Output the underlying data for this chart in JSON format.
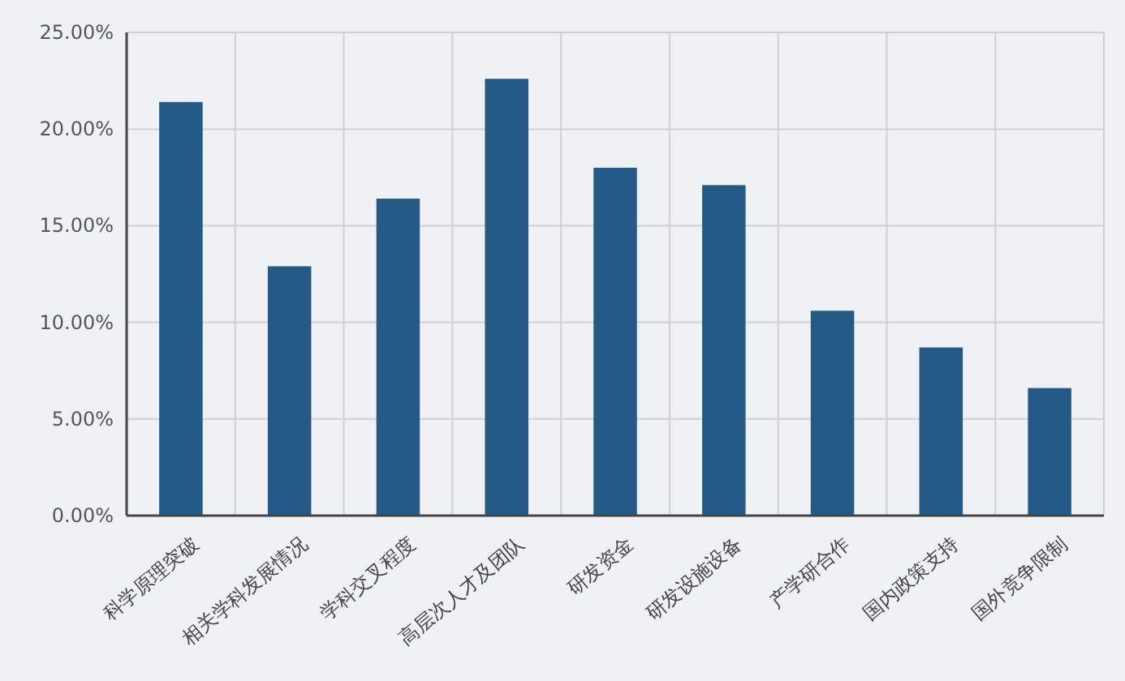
{
  "chart_data": {
    "type": "bar",
    "categories": [
      "科学原理突破",
      "相关学科发展情况",
      "学科交叉程度",
      "高层次人才及团队",
      "研发资金",
      "研发设施设备",
      "产学研合作",
      "国内政策支持",
      "国外竞争限制"
    ],
    "values": [
      21.4,
      12.9,
      16.4,
      22.6,
      18.0,
      17.1,
      10.6,
      8.7,
      6.6
    ],
    "color": "#235b86",
    "ylim": [
      0,
      25
    ],
    "yticks": [
      {
        "value": 0,
        "label": "0.00%"
      },
      {
        "value": 5,
        "label": "5.00%"
      },
      {
        "value": 10,
        "label": "10.00%"
      },
      {
        "value": 15,
        "label": "15.00%"
      },
      {
        "value": 20,
        "label": "20.00%"
      },
      {
        "value": 25,
        "label": "25.00%"
      }
    ],
    "grid": true
  }
}
